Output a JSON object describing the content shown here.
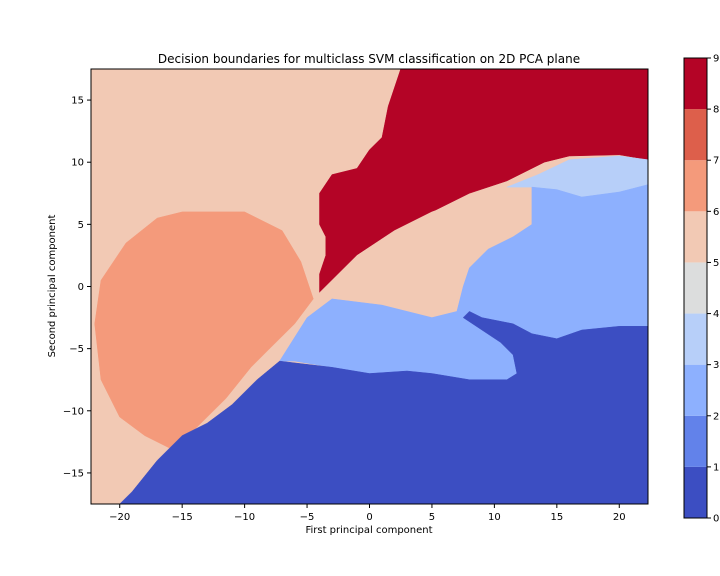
{
  "chart_data": {
    "type": "contour",
    "title": "Decision boundaries for multiclass SVM classification on 2D PCA plane",
    "xlabel": "First principal component",
    "ylabel": "Second principal component",
    "xlim": [
      -22.3,
      22.3
    ],
    "ylim": [
      -17.5,
      17.5
    ],
    "xticks": [
      -20,
      -15,
      -10,
      -5,
      0,
      5,
      10,
      15,
      20
    ],
    "yticks": [
      -15,
      -10,
      -5,
      0,
      5,
      10,
      15
    ],
    "grid": false,
    "colorbar": {
      "ticks": [
        0,
        1,
        2,
        3,
        4,
        5,
        6,
        7,
        8,
        9
      ],
      "levels": [
        {
          "from": 0,
          "to": 1,
          "color": "#3c4ec2"
        },
        {
          "from": 1,
          "to": 2,
          "color": "#6282ea"
        },
        {
          "from": 2,
          "to": 3,
          "color": "#8db0fe"
        },
        {
          "from": 3,
          "to": 4,
          "color": "#b7cff9"
        },
        {
          "from": 4,
          "to": 5,
          "color": "#dcdddd"
        },
        {
          "from": 5,
          "to": 6,
          "color": "#f2c9b4"
        },
        {
          "from": 6,
          "to": 7,
          "color": "#f49a7b"
        },
        {
          "from": 7,
          "to": 8,
          "color": "#dd5f4b"
        },
        {
          "from": 8,
          "to": 9,
          "color": "#b40426"
        }
      ]
    },
    "regions": [
      {
        "class": 5,
        "color": "#f2c9b4",
        "background": true
      },
      {
        "class": 6,
        "color": "#f49a7b",
        "points": [
          [
            -19.5,
            3.5
          ],
          [
            -17,
            5.5
          ],
          [
            -15,
            6
          ],
          [
            -10,
            6
          ],
          [
            -7,
            4.5
          ],
          [
            -5.5,
            2
          ],
          [
            -4.5,
            -1
          ],
          [
            -6,
            -3
          ],
          [
            -8,
            -5
          ],
          [
            -9.5,
            -6.5
          ],
          [
            -11.5,
            -9
          ],
          [
            -14,
            -11.5
          ],
          [
            -16,
            -13
          ],
          [
            -18,
            -12
          ],
          [
            -20,
            -10.5
          ],
          [
            -21.5,
            -7.5
          ],
          [
            -22,
            -3
          ],
          [
            -21.5,
            0.5
          ]
        ]
      },
      {
        "class": 8,
        "color": "#b40426",
        "points": [
          [
            2.5,
            17.5
          ],
          [
            22.3,
            17.5
          ],
          [
            22.3,
            10.2
          ],
          [
            20,
            10.6
          ],
          [
            16,
            10.5
          ],
          [
            14,
            10
          ],
          [
            11,
            8.5
          ],
          [
            8,
            7.5
          ],
          [
            5,
            6
          ],
          [
            2,
            4.5
          ],
          [
            -1,
            2.5
          ],
          [
            -3,
            0.5
          ],
          [
            -4,
            -0.5
          ],
          [
            -4,
            1
          ],
          [
            -3.5,
            2.5
          ],
          [
            -3.5,
            4
          ],
          [
            -4,
            5
          ],
          [
            -4,
            7.5
          ],
          [
            -3,
            9
          ],
          [
            -1,
            9.5
          ],
          [
            0,
            11
          ],
          [
            1,
            12
          ],
          [
            1.5,
            14.5
          ]
        ]
      },
      {
        "class": 5,
        "color": "#f2c9b4",
        "points": [
          [
            -4,
            -0.5
          ],
          [
            -3,
            0.5
          ],
          [
            -1,
            2.5
          ],
          [
            2,
            4.5
          ],
          [
            5,
            6
          ],
          [
            8,
            7
          ],
          [
            10,
            7.5
          ],
          [
            13,
            7.5
          ],
          [
            13,
            5
          ],
          [
            11.5,
            4
          ],
          [
            9.5,
            3
          ],
          [
            8,
            1.5
          ],
          [
            7.5,
            0
          ],
          [
            7,
            -2
          ],
          [
            5,
            -2.5
          ],
          [
            3,
            -2
          ],
          [
            1,
            -1.5
          ],
          [
            -1,
            -1
          ],
          [
            -3,
            -1
          ]
        ]
      },
      {
        "class": 3,
        "color": "#b7cff9",
        "points": [
          [
            11,
            8
          ],
          [
            13.5,
            9
          ],
          [
            16,
            10.2
          ],
          [
            20,
            10.5
          ],
          [
            22.3,
            10.2
          ],
          [
            22.3,
            8.2
          ],
          [
            20,
            7.6
          ],
          [
            17,
            7.2
          ],
          [
            15,
            7.8
          ],
          [
            13,
            8
          ]
        ]
      },
      {
        "class": 2,
        "color": "#8db0fe",
        "points": [
          [
            -7.2,
            -6
          ],
          [
            -5,
            -2.5
          ],
          [
            -3,
            -1
          ],
          [
            1,
            -1.5
          ],
          [
            5,
            -2.5
          ],
          [
            7,
            -2
          ],
          [
            7.5,
            0
          ],
          [
            8,
            1.5
          ],
          [
            9.5,
            3
          ],
          [
            11.5,
            4
          ],
          [
            13,
            5
          ],
          [
            13,
            8
          ],
          [
            15,
            7.8
          ],
          [
            17,
            7.2
          ],
          [
            20,
            7.6
          ],
          [
            22.3,
            8.2
          ],
          [
            22.3,
            -3.2
          ],
          [
            20,
            -3.2
          ],
          [
            17,
            -3.5
          ],
          [
            15,
            -4.2
          ],
          [
            13,
            -3.8
          ],
          [
            11.5,
            -3
          ],
          [
            9,
            -2.5
          ],
          [
            8,
            -2
          ],
          [
            7.5,
            -2.5
          ],
          [
            9,
            -3.5
          ],
          [
            10.5,
            -4.5
          ],
          [
            11.5,
            -5.5
          ],
          [
            11.8,
            -7
          ],
          [
            11,
            -7.5
          ],
          [
            8,
            -7.5
          ],
          [
            5,
            -7
          ],
          [
            3,
            -6.8
          ],
          [
            0,
            -7
          ],
          [
            -3,
            -6.5
          ],
          [
            -6,
            -6
          ]
        ]
      },
      {
        "class": 0,
        "color": "#3c4ec2",
        "points": [
          [
            -20,
            -17.5
          ],
          [
            -19,
            -16.5
          ],
          [
            -17,
            -14
          ],
          [
            -15,
            -12
          ],
          [
            -13,
            -11
          ],
          [
            -11,
            -9.5
          ],
          [
            -9,
            -7.5
          ],
          [
            -7.2,
            -6
          ],
          [
            -3,
            -6.5
          ],
          [
            0,
            -7
          ],
          [
            3,
            -6.8
          ],
          [
            5,
            -7
          ],
          [
            8,
            -7.5
          ],
          [
            11,
            -7.5
          ],
          [
            11.8,
            -7
          ],
          [
            11.5,
            -5.5
          ],
          [
            10.5,
            -4.5
          ],
          [
            9,
            -3.5
          ],
          [
            7.5,
            -2.5
          ],
          [
            8,
            -2
          ],
          [
            9,
            -2.5
          ],
          [
            11.5,
            -3
          ],
          [
            13,
            -3.8
          ],
          [
            15,
            -4.2
          ],
          [
            17,
            -3.5
          ],
          [
            20,
            -3.2
          ],
          [
            22.3,
            -3.2
          ],
          [
            22.3,
            -17.5
          ]
        ]
      }
    ]
  }
}
